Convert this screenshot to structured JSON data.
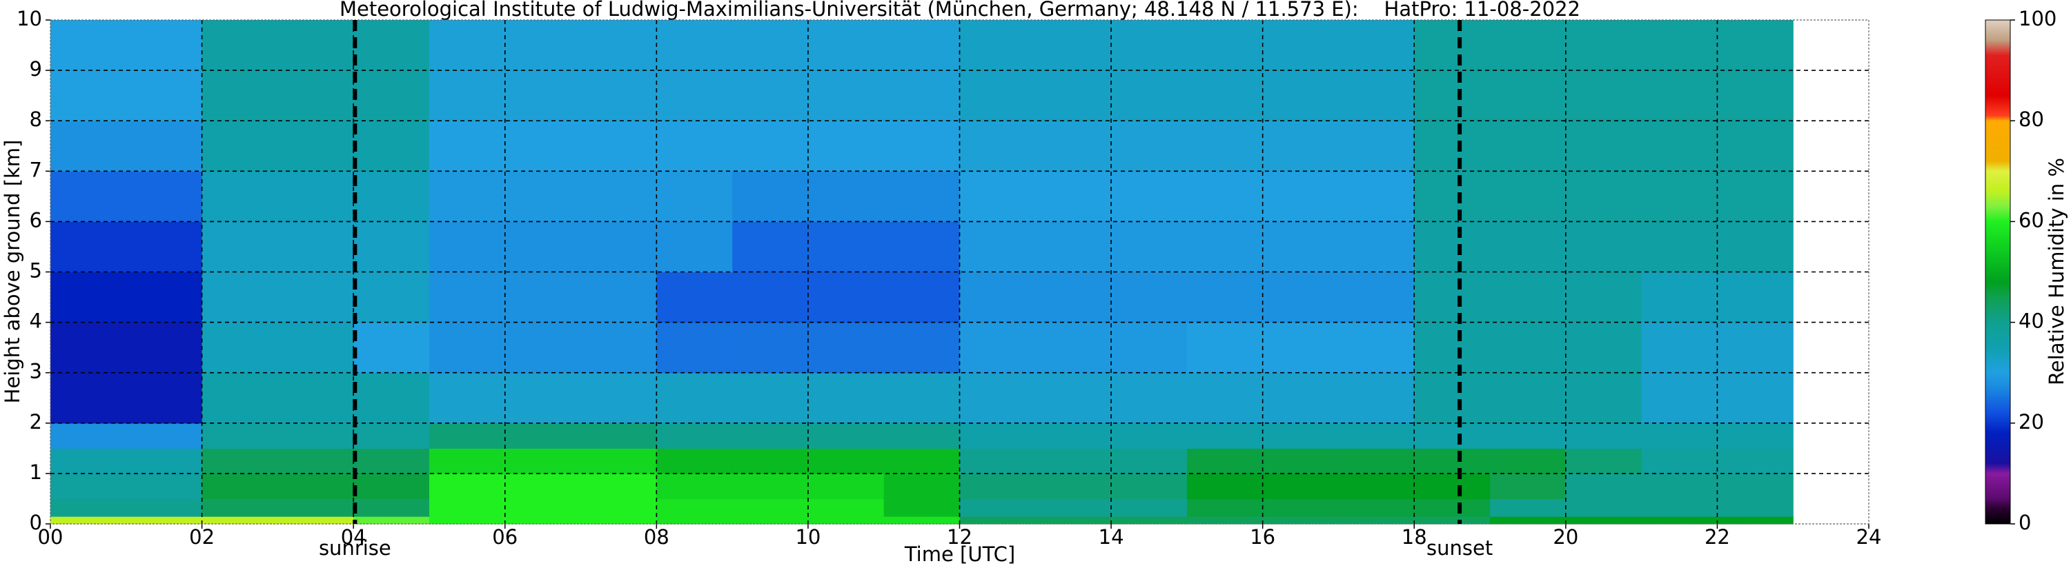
{
  "chart_data": {
    "type": "heatmap",
    "title": "Meteorological Institute of Ludwig-Maximilians-Universität (München, Germany; 48.148 N / 11.573 E):    HatPro: 11-08-2022",
    "xlabel": "Time [UTC]",
    "ylabel": "Height above ground [km]",
    "colorbar_label": "Relative Humidity in %",
    "xlim": [
      0,
      24
    ],
    "ylim": [
      0,
      10
    ],
    "xticks": [
      {
        "value": 0,
        "label": "00"
      },
      {
        "value": 2,
        "label": "02"
      },
      {
        "value": 4,
        "label": "04"
      },
      {
        "value": 6,
        "label": "06"
      },
      {
        "value": 8,
        "label": "08"
      },
      {
        "value": 10,
        "label": "10"
      },
      {
        "value": 12,
        "label": "12"
      },
      {
        "value": 14,
        "label": "14"
      },
      {
        "value": 16,
        "label": "16"
      },
      {
        "value": 18,
        "label": "18"
      },
      {
        "value": 20,
        "label": "20"
      },
      {
        "value": 22,
        "label": "22"
      },
      {
        "value": 24,
        "label": "24"
      }
    ],
    "yticks": [
      0,
      1,
      2,
      3,
      4,
      5,
      6,
      7,
      8,
      9,
      10
    ],
    "grid": true,
    "x_edges": [
      0,
      1,
      2,
      3,
      4,
      5,
      6,
      7,
      8,
      9,
      10,
      11,
      12,
      13,
      14,
      15,
      16,
      17,
      18,
      19,
      20,
      21,
      22,
      23
    ],
    "y_edges": [
      0,
      0.15,
      0.5,
      1,
      1.5,
      2,
      3,
      4,
      5,
      6,
      7,
      8,
      10
    ],
    "z": [
      [
        66,
        66,
        66,
        66,
        62,
        60,
        60,
        60,
        58,
        58,
        58,
        58,
        44,
        44,
        44,
        44,
        44,
        44,
        44,
        48,
        48,
        48,
        48
      ],
      [
        40,
        40,
        44,
        44,
        44,
        60,
        60,
        60,
        58,
        58,
        58,
        52,
        40,
        40,
        40,
        46,
        46,
        46,
        46,
        40,
        40,
        40,
        40
      ],
      [
        38,
        38,
        46,
        46,
        46,
        60,
        60,
        60,
        56,
        56,
        56,
        52,
        42,
        42,
        42,
        48,
        48,
        48,
        48,
        45,
        40,
        40,
        40
      ],
      [
        36,
        36,
        44,
        44,
        44,
        56,
        56,
        56,
        52,
        52,
        52,
        52,
        40,
        40,
        40,
        46,
        46,
        46,
        46,
        46,
        42,
        38,
        38
      ],
      [
        28,
        28,
        38,
        38,
        38,
        42,
        42,
        42,
        40,
        40,
        40,
        40,
        36,
        36,
        36,
        36,
        36,
        36,
        36,
        36,
        36,
        36,
        36
      ],
      [
        16,
        16,
        36,
        36,
        36,
        32,
        32,
        32,
        33,
        33,
        33,
        33,
        32,
        32,
        32,
        32,
        32,
        32,
        37,
        37,
        37,
        32,
        32
      ],
      [
        16,
        16,
        34,
        34,
        30,
        28,
        28,
        28,
        25,
        25,
        25,
        25,
        29,
        29,
        29,
        30,
        30,
        30,
        37,
        37,
        37,
        32,
        32
      ],
      [
        18,
        18,
        33,
        33,
        33,
        28,
        28,
        28,
        23,
        23,
        23,
        23,
        28,
        28,
        28,
        28,
        28,
        28,
        37,
        37,
        37,
        34,
        34
      ],
      [
        20,
        20,
        33,
        33,
        33,
        28,
        28,
        28,
        28,
        24,
        24,
        24,
        29,
        29,
        29,
        29,
        29,
        29,
        37,
        37,
        37,
        37,
        37
      ],
      [
        24,
        24,
        34,
        34,
        34,
        29,
        29,
        29,
        29,
        27,
        27,
        27,
        30,
        30,
        30,
        30,
        30,
        30,
        38,
        38,
        38,
        38,
        38
      ],
      [
        28,
        28,
        36,
        36,
        36,
        30,
        30,
        30,
        30,
        30,
        30,
        30,
        31,
        31,
        31,
        31,
        31,
        31,
        38,
        38,
        38,
        38,
        38
      ],
      [
        30,
        30,
        37,
        37,
        37,
        31,
        31,
        31,
        31,
        31,
        31,
        31,
        33,
        33,
        33,
        33,
        33,
        33,
        38,
        38,
        38,
        38,
        38
      ]
    ],
    "clim": [
      0,
      100
    ],
    "cticks": [
      0,
      20,
      40,
      60,
      80,
      100
    ],
    "colormap": [
      {
        "value": 0,
        "color": "#000000"
      },
      {
        "value": 3,
        "color": "#2a0030"
      },
      {
        "value": 5,
        "color": "#5a0a6e"
      },
      {
        "value": 10,
        "color": "#8a1aa0"
      },
      {
        "value": 12,
        "color": "#1a10a0"
      },
      {
        "value": 18,
        "color": "#0020c0"
      },
      {
        "value": 22,
        "color": "#1050e0"
      },
      {
        "value": 27,
        "color": "#1a8ae0"
      },
      {
        "value": 30,
        "color": "#20a0e0"
      },
      {
        "value": 35,
        "color": "#10a0b0"
      },
      {
        "value": 40,
        "color": "#10a090"
      },
      {
        "value": 45,
        "color": "#10a050"
      },
      {
        "value": 48,
        "color": "#00a020"
      },
      {
        "value": 55,
        "color": "#10d020"
      },
      {
        "value": 60,
        "color": "#20f020"
      },
      {
        "value": 63,
        "color": "#80f040"
      },
      {
        "value": 66,
        "color": "#c0f020"
      },
      {
        "value": 70,
        "color": "#e0f040"
      },
      {
        "value": 72,
        "color": "#f0b000"
      },
      {
        "value": 80,
        "color": "#ffaa00"
      },
      {
        "value": 81,
        "color": "#ff4020"
      },
      {
        "value": 85,
        "color": "#e00000"
      },
      {
        "value": 93,
        "color": "#e02020"
      },
      {
        "value": 96,
        "color": "#c0a080"
      },
      {
        "value": 100,
        "color": "#e0d0c0"
      }
    ],
    "markers": [
      {
        "x": 4.02,
        "label": "sunrise"
      },
      {
        "x": 18.6,
        "label": "sunset"
      }
    ]
  }
}
